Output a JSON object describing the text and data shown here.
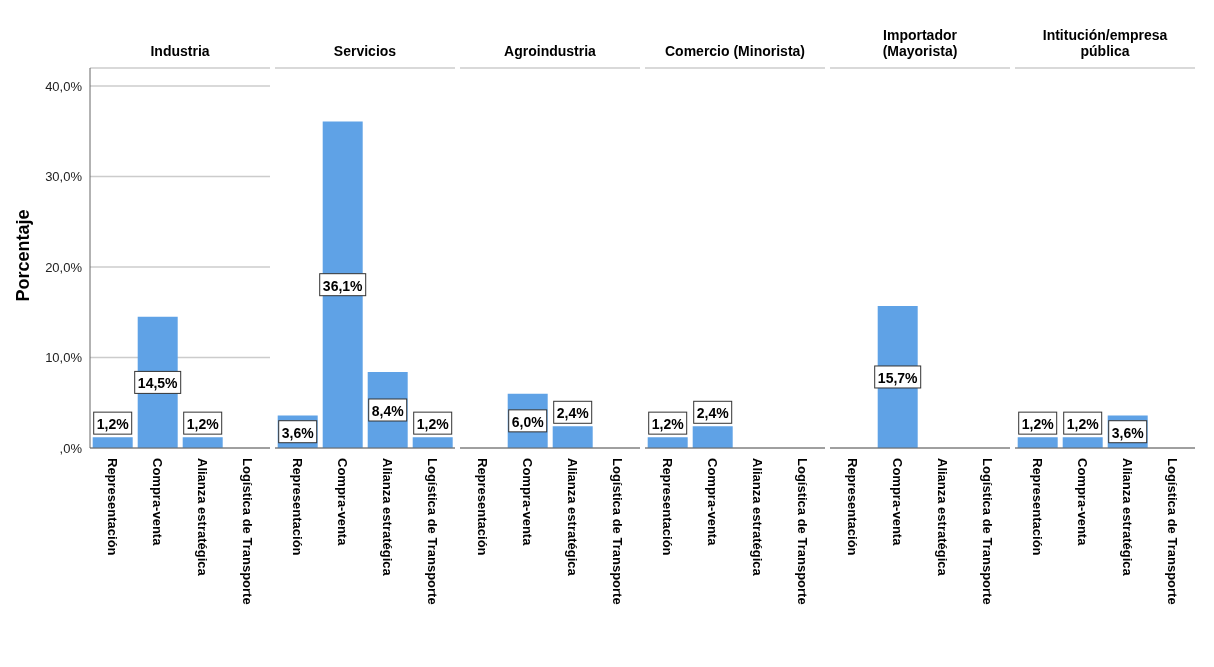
{
  "chart_data": [
    {
      "type": "bar",
      "title": "Industria",
      "ylabel": "Porcentaje",
      "categories": [
        "Representación",
        "Compra-venta",
        "Alianza estratégica",
        "Logística de Transporte"
      ],
      "values": [
        1.2,
        14.5,
        1.2,
        null
      ],
      "value_labels": [
        "1,2%",
        "14,5%",
        "1,2%",
        null
      ],
      "color": "#5fa2e6",
      "ylim": [
        0,
        42
      ],
      "yticks": [
        {
          "value": 0,
          "label": ",0%"
        },
        {
          "value": 10,
          "label": "10,0%"
        },
        {
          "value": 20,
          "label": "20,0%"
        },
        {
          "value": 30,
          "label": "30,0%"
        },
        {
          "value": 40,
          "label": "40,0%"
        }
      ],
      "grid": "y"
    },
    {
      "type": "bar",
      "title": "Servicios",
      "categories": [
        "Representación",
        "Compra-venta",
        "Alianza estratégica",
        "Logística de Transporte"
      ],
      "values": [
        3.6,
        36.1,
        8.4,
        1.2
      ],
      "value_labels": [
        "3,6%",
        "36,1%",
        "8,4%",
        "1,2%"
      ],
      "color": "#5fa2e6",
      "ylim": [
        0,
        42
      ],
      "yticks": [
        {
          "value": 0,
          "label": null
        },
        {
          "value": 10,
          "label": null
        },
        {
          "value": 20,
          "label": null
        },
        {
          "value": 30,
          "label": null
        },
        {
          "value": 40,
          "label": null
        }
      ],
      "grid": "y",
      "tick_labels": "x"
    },
    {
      "type": "bar",
      "title": "Agroindustria",
      "categories": [
        "Representación",
        "Compra-venta",
        "Alianza estratégica",
        "Logística de Transporte"
      ],
      "values": [
        null,
        6.0,
        2.4,
        null
      ],
      "value_labels": [
        null,
        "6,0%",
        "2,4%",
        null
      ],
      "color": "#5fa2e6",
      "ylim": [
        0,
        42
      ],
      "yticks": [
        {
          "value": 0,
          "label": null
        },
        {
          "value": 10,
          "label": null
        },
        {
          "value": 20,
          "label": null
        },
        {
          "value": 30,
          "label": null
        },
        {
          "value": 40,
          "label": null
        }
      ],
      "grid": "y",
      "tick_labels": "x"
    },
    {
      "type": "bar",
      "title": "Comercio (Minorista)",
      "categories": [
        "Representación",
        "Compra-venta",
        "Alianza estratégica",
        "Logística de Transporte"
      ],
      "values": [
        1.2,
        2.4,
        null,
        null
      ],
      "value_labels": [
        "1,2%",
        "2,4%",
        null,
        null
      ],
      "color": "#5fa2e6",
      "ylim": [
        0,
        42
      ],
      "yticks": [
        {
          "value": 0,
          "label": null
        },
        {
          "value": 10,
          "label": null
        },
        {
          "value": 20,
          "label": null
        },
        {
          "value": 30,
          "label": null
        },
        {
          "value": 40,
          "label": null
        }
      ],
      "grid": "y",
      "tick_labels": "x"
    },
    {
      "type": "bar",
      "title": "Importador (Mayorista)",
      "categories": [
        "Representación",
        "Compra-venta",
        "Alianza estratégica",
        "Logística de Transporte"
      ],
      "values": [
        null,
        15.7,
        null,
        null
      ],
      "value_labels": [
        null,
        "15,7%",
        null,
        null
      ],
      "color": "#5fa2e6",
      "ylim": [
        0,
        42
      ],
      "yticks": [
        {
          "value": 0,
          "label": null
        },
        {
          "value": 10,
          "label": null
        },
        {
          "value": 20,
          "label": null
        },
        {
          "value": 30,
          "label": null
        },
        {
          "value": 40,
          "label": null
        }
      ],
      "grid": "y",
      "tick_labels": "x"
    },
    {
      "type": "bar",
      "title": "Intitución/empresa pública",
      "categories": [
        "Representación",
        "Compra-venta",
        "Alianza estratégica",
        "Logística de Transporte"
      ],
      "values": [
        1.2,
        1.2,
        3.6,
        null
      ],
      "value_labels": [
        "1,2%",
        "1,2%",
        "3,6%",
        null
      ],
      "color": "#5fa2e6",
      "ylim": [
        0,
        42
      ],
      "yticks": [
        {
          "value": 0,
          "label": null
        },
        {
          "value": 10,
          "label": null
        },
        {
          "value": 20,
          "label": null
        },
        {
          "value": 30,
          "label": null
        },
        {
          "value": 40,
          "label": null
        }
      ],
      "grid": "y",
      "tick_labels": "x"
    }
  ]
}
